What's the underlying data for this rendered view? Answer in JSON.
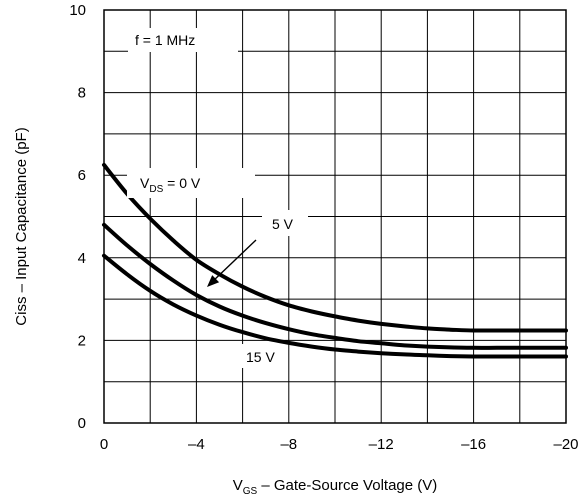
{
  "chart_data": {
    "type": "line",
    "title": "",
    "xlabel": {
      "prefix": "V",
      "sub": "GS",
      "suffix": " – Gate-Source Voltage (V)"
    },
    "ylabel": "Ciss – Input Capacitance (pF)",
    "xlim": [
      0,
      -20
    ],
    "ylim": [
      0,
      10
    ],
    "grid": true,
    "x_ticks": [
      0,
      -4,
      -8,
      -12,
      -16,
      -20
    ],
    "x_tick_labels": [
      "0",
      "–4",
      "–8",
      "–12",
      "–16",
      "–20"
    ],
    "y_ticks": [
      0,
      2,
      4,
      6,
      8,
      10
    ],
    "y_tick_labels": [
      "0",
      "2",
      "4",
      "6",
      "8",
      "10"
    ],
    "annotations": {
      "frequency": "f = 1 MHz",
      "vds_zero": {
        "prefix": "V",
        "sub": "DS",
        "suffix": " = 0 V"
      },
      "vds_five": "5 V",
      "vds_fifteen": "15 V"
    },
    "series": [
      {
        "x": [
          0,
          -1,
          -2,
          -3,
          -4,
          -5,
          -6,
          -7,
          -8,
          -9,
          -10,
          -11,
          -12,
          -13,
          -14,
          -15,
          -16,
          -17,
          -18,
          -19,
          -20
        ],
        "y": [
          6.25,
          5.55,
          4.95,
          4.42,
          3.95,
          3.6,
          3.3,
          3.05,
          2.85,
          2.7,
          2.58,
          2.48,
          2.4,
          2.34,
          2.29,
          2.26,
          2.24,
          2.24,
          2.24,
          2.24,
          2.24
        ]
      },
      {
        "x": [
          0,
          -1,
          -2,
          -3,
          -4,
          -5,
          -6,
          -7,
          -8,
          -9,
          -10,
          -11,
          -12,
          -13,
          -14,
          -15,
          -16,
          -17,
          -18,
          -19,
          -20
        ],
        "y": [
          4.8,
          4.3,
          3.85,
          3.45,
          3.1,
          2.82,
          2.6,
          2.42,
          2.27,
          2.15,
          2.06,
          1.98,
          1.93,
          1.88,
          1.85,
          1.83,
          1.82,
          1.82,
          1.82,
          1.82,
          1.82
        ]
      },
      {
        "x": [
          0,
          -1,
          -2,
          -3,
          -4,
          -5,
          -6,
          -7,
          -8,
          -9,
          -10,
          -11,
          -12,
          -13,
          -14,
          -15,
          -16,
          -17,
          -18,
          -19,
          -20
        ],
        "y": [
          4.05,
          3.6,
          3.2,
          2.87,
          2.6,
          2.38,
          2.2,
          2.05,
          1.94,
          1.85,
          1.78,
          1.73,
          1.69,
          1.66,
          1.64,
          1.62,
          1.61,
          1.61,
          1.61,
          1.61,
          1.61
        ]
      }
    ]
  }
}
